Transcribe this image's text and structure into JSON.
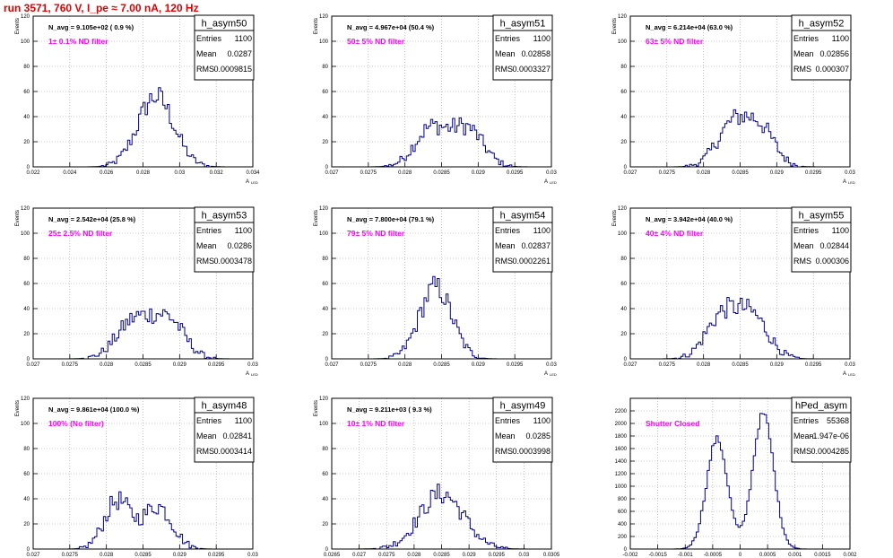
{
  "run_title": "run 3571,   760 V, I_pe ≈ 7.00 nA, 120 Hz",
  "stats_labels": {
    "entries": "Entries",
    "mean": "Mean",
    "rms": "RMS"
  },
  "chart_data": [
    {
      "type": "bar",
      "name": "h_asym50",
      "xlabel": "A",
      "xlabel_sub": "LED",
      "ylabel": "Events",
      "navg": "N_avg = 9.105e+02 ( 0.9 %)",
      "filter": "1± 0.1% ND filter",
      "stats": {
        "entries": "1100",
        "mean": "0.0287",
        "rms": "0.0009815"
      },
      "xlim": [
        0.022,
        0.034
      ],
      "ylim": [
        0,
        120
      ],
      "xticks": [
        0.022,
        0.024,
        0.026,
        0.028,
        0.03,
        0.032,
        0.034
      ],
      "xtick_labels": [
        "0.022",
        "0.024",
        "0.026",
        "0.028",
        "0.03",
        "0.032",
        "0.034"
      ],
      "yticks": [
        0,
        20,
        40,
        60,
        80,
        100,
        120
      ],
      "ytick_labels": [
        "0",
        "20",
        "40",
        "60",
        "80",
        "100",
        "120"
      ],
      "peaks": [
        {
          "mu": 0.0287,
          "sigma": 0.00098,
          "amp": 56
        }
      ]
    },
    {
      "type": "bar",
      "name": "h_asym51",
      "xlabel": "A",
      "xlabel_sub": "LED",
      "ylabel": "Events",
      "navg": "N_avg = 4.967e+04 (50.4 %)",
      "filter": "50± 5% ND filter",
      "stats": {
        "entries": "1100",
        "mean": "0.02858",
        "rms": "0.0003327"
      },
      "xlim": [
        0.027,
        0.03
      ],
      "ylim": [
        0,
        120
      ],
      "xticks": [
        0.027,
        0.0275,
        0.028,
        0.0285,
        0.029,
        0.0295,
        0.03
      ],
      "xtick_labels": [
        "0.027",
        "0.0275",
        "0.028",
        "0.0285",
        "0.029",
        "0.0295",
        "0.03"
      ],
      "yticks": [
        0,
        20,
        40,
        60,
        80,
        100,
        120
      ],
      "ytick_labels": [
        "0",
        "20",
        "40",
        "60",
        "80",
        "100",
        "120"
      ],
      "peaks": [
        {
          "mu": 0.02835,
          "sigma": 0.00022,
          "amp": 30
        },
        {
          "mu": 0.02885,
          "sigma": 0.00022,
          "amp": 30
        }
      ]
    },
    {
      "type": "bar",
      "name": "h_asym52",
      "xlabel": "A",
      "xlabel_sub": "LED",
      "ylabel": "Events",
      "navg": "N_avg = 6.214e+04 (63.0 %)",
      "filter": "63± 5% ND filter",
      "stats": {
        "entries": "1100",
        "mean": "0.02856",
        "rms": "0.000307"
      },
      "xlim": [
        0.027,
        0.03
      ],
      "ylim": [
        0,
        120
      ],
      "xticks": [
        0.027,
        0.0275,
        0.028,
        0.0285,
        0.029,
        0.0295,
        0.03
      ],
      "xtick_labels": [
        "0.027",
        "0.0275",
        "0.028",
        "0.0285",
        "0.029",
        "0.0295",
        "0.03"
      ],
      "yticks": [
        0,
        20,
        40,
        60,
        80,
        100,
        120
      ],
      "ytick_labels": [
        "0",
        "20",
        "40",
        "60",
        "80",
        "100",
        "120"
      ],
      "peaks": [
        {
          "mu": 0.0284,
          "sigma": 0.00022,
          "amp": 33
        },
        {
          "mu": 0.02878,
          "sigma": 0.0002,
          "amp": 28
        }
      ]
    },
    {
      "type": "bar",
      "name": "h_asym53",
      "xlabel": "A",
      "xlabel_sub": "LED",
      "ylabel": "Events",
      "navg": "N_avg = 2.542e+04 (25.8 %)",
      "filter": "25± 2.5% ND filter",
      "stats": {
        "entries": "1100",
        "mean": "0.0286",
        "rms": "0.0003478"
      },
      "xlim": [
        0.027,
        0.03
      ],
      "ylim": [
        0,
        120
      ],
      "xticks": [
        0.027,
        0.0275,
        0.028,
        0.0285,
        0.029,
        0.0295,
        0.03
      ],
      "xtick_labels": [
        "0.027",
        "0.0275",
        "0.028",
        "0.0285",
        "0.029",
        "0.0295",
        "0.03"
      ],
      "yticks": [
        0,
        20,
        40,
        60,
        80,
        100,
        120
      ],
      "ytick_labels": [
        "0",
        "20",
        "40",
        "60",
        "80",
        "100",
        "120"
      ],
      "peaks": [
        {
          "mu": 0.02838,
          "sigma": 0.00024,
          "amp": 30
        },
        {
          "mu": 0.02885,
          "sigma": 0.00022,
          "amp": 30
        }
      ]
    },
    {
      "type": "bar",
      "name": "h_asym54",
      "xlabel": "A",
      "xlabel_sub": "LED",
      "ylabel": "Events",
      "navg": "N_avg = 7.800e+04 (79.1 %)",
      "filter": "79± 5% ND filter",
      "stats": {
        "entries": "1100",
        "mean": "0.02837",
        "rms": "0.0002261"
      },
      "xlim": [
        0.027,
        0.03
      ],
      "ylim": [
        0,
        120
      ],
      "xticks": [
        0.027,
        0.0275,
        0.028,
        0.0285,
        0.029,
        0.0295,
        0.03
      ],
      "xtick_labels": [
        "0.027",
        "0.0275",
        "0.028",
        "0.0285",
        "0.029",
        "0.0295",
        "0.03"
      ],
      "yticks": [
        0,
        20,
        40,
        60,
        80,
        100,
        120
      ],
      "ytick_labels": [
        "0",
        "20",
        "40",
        "60",
        "80",
        "100",
        "120"
      ],
      "peaks": [
        {
          "mu": 0.02842,
          "sigma": 0.00022,
          "amp": 57
        }
      ]
    },
    {
      "type": "bar",
      "name": "h_asym55",
      "xlabel": "A",
      "xlabel_sub": "LED",
      "ylabel": "Events",
      "navg": "N_avg = 3.942e+04 (40.0 %)",
      "filter": "40± 4% ND filter",
      "stats": {
        "entries": "1100",
        "mean": "0.02844",
        "rms": "0.000306"
      },
      "xlim": [
        0.027,
        0.03
      ],
      "ylim": [
        0,
        120
      ],
      "xticks": [
        0.027,
        0.0275,
        0.028,
        0.0285,
        0.029,
        0.0295,
        0.03
      ],
      "xtick_labels": [
        "0.027",
        "0.0275",
        "0.028",
        "0.0285",
        "0.029",
        "0.0295",
        "0.03"
      ],
      "yticks": [
        0,
        20,
        40,
        60,
        80,
        100,
        120
      ],
      "ytick_labels": [
        "0",
        "20",
        "40",
        "60",
        "80",
        "100",
        "120"
      ],
      "peaks": [
        {
          "mu": 0.02825,
          "sigma": 0.00022,
          "amp": 33
        },
        {
          "mu": 0.02867,
          "sigma": 0.00022,
          "amp": 32
        }
      ]
    },
    {
      "type": "bar",
      "name": "h_asym48",
      "xlabel": "A",
      "xlabel_sub": "LED",
      "ylabel": "Events",
      "navg": "N_avg = 9.861e+04 (100.0 %)",
      "filter": "100% (No filter)",
      "stats": {
        "entries": "1100",
        "mean": "0.02841",
        "rms": "0.0003414"
      },
      "xlim": [
        0.027,
        0.03
      ],
      "ylim": [
        0,
        120
      ],
      "xticks": [
        0.027,
        0.0275,
        0.028,
        0.0285,
        0.029,
        0.0295,
        0.03
      ],
      "xtick_labels": [
        "0.027",
        "0.0275",
        "0.028",
        "0.0285",
        "0.029",
        "0.0295",
        "0.03"
      ],
      "yticks": [
        0,
        20,
        40,
        60,
        80,
        100,
        120
      ],
      "ytick_labels": [
        "0",
        "20",
        "40",
        "60",
        "80",
        "100",
        "120"
      ],
      "peaks": [
        {
          "mu": 0.02815,
          "sigma": 0.00018,
          "amp": 38
        },
        {
          "mu": 0.0287,
          "sigma": 0.0002,
          "amp": 34
        }
      ]
    },
    {
      "type": "bar",
      "name": "h_asym49",
      "xlabel": "A",
      "xlabel_sub": "LED",
      "ylabel": "Events",
      "navg": "N_avg = 9.211e+03 ( 9.3 %)",
      "filter": "10± 1% ND filter",
      "stats": {
        "entries": "1100",
        "mean": "0.0285",
        "rms": "0.0003998"
      },
      "xlim": [
        0.0265,
        0.0305
      ],
      "ylim": [
        0,
        120
      ],
      "xticks": [
        0.0265,
        0.027,
        0.0275,
        0.028,
        0.0285,
        0.029,
        0.0295,
        0.03,
        0.0305
      ],
      "xtick_labels": [
        "0.0265",
        "0.027",
        "0.0275",
        "0.028",
        "0.0285",
        "0.029",
        "0.0295",
        "0.03",
        "0.0305"
      ],
      "yticks": [
        0,
        20,
        40,
        60,
        80,
        100,
        120
      ],
      "ytick_labels": [
        "0",
        "20",
        "40",
        "60",
        "80",
        "100",
        "120"
      ],
      "peaks": [
        {
          "mu": 0.0285,
          "sigma": 0.0004,
          "amp": 44
        }
      ]
    },
    {
      "type": "bar",
      "name": "hPed_asym",
      "xlabel": "A",
      "xlabel_sub": "LED",
      "ylabel": "",
      "navg": "",
      "filter": "Shutter Closed",
      "stats": {
        "entries": "55368",
        "mean": "-1.947e-06",
        "rms": "0.0004285"
      },
      "xlim": [
        -0.002,
        0.002
      ],
      "ylim": [
        0,
        2400
      ],
      "xticks": [
        -0.002,
        -0.0015,
        -0.001,
        -0.0005,
        0,
        0.0005,
        0.001,
        0.0015,
        0.002
      ],
      "xtick_labels": [
        "-0.002",
        "-0.0015",
        "-0.001",
        "-0.0005",
        "0",
        "0.0005",
        "0.001",
        "0.0015",
        "0.002"
      ],
      "yticks": [
        0,
        200,
        400,
        600,
        800,
        1000,
        1200,
        1400,
        1600,
        1800,
        2000,
        2200
      ],
      "ytick_labels": [
        "0",
        "200",
        "400",
        "600",
        "800",
        "1000",
        "1200",
        "1400",
        "1600",
        "1800",
        "2000",
        "2200"
      ],
      "peaks": [
        {
          "mu": -0.00042,
          "sigma": 0.00019,
          "amp": 1750
        },
        {
          "mu": 0.00042,
          "sigma": 0.00019,
          "amp": 2150
        }
      ]
    }
  ]
}
